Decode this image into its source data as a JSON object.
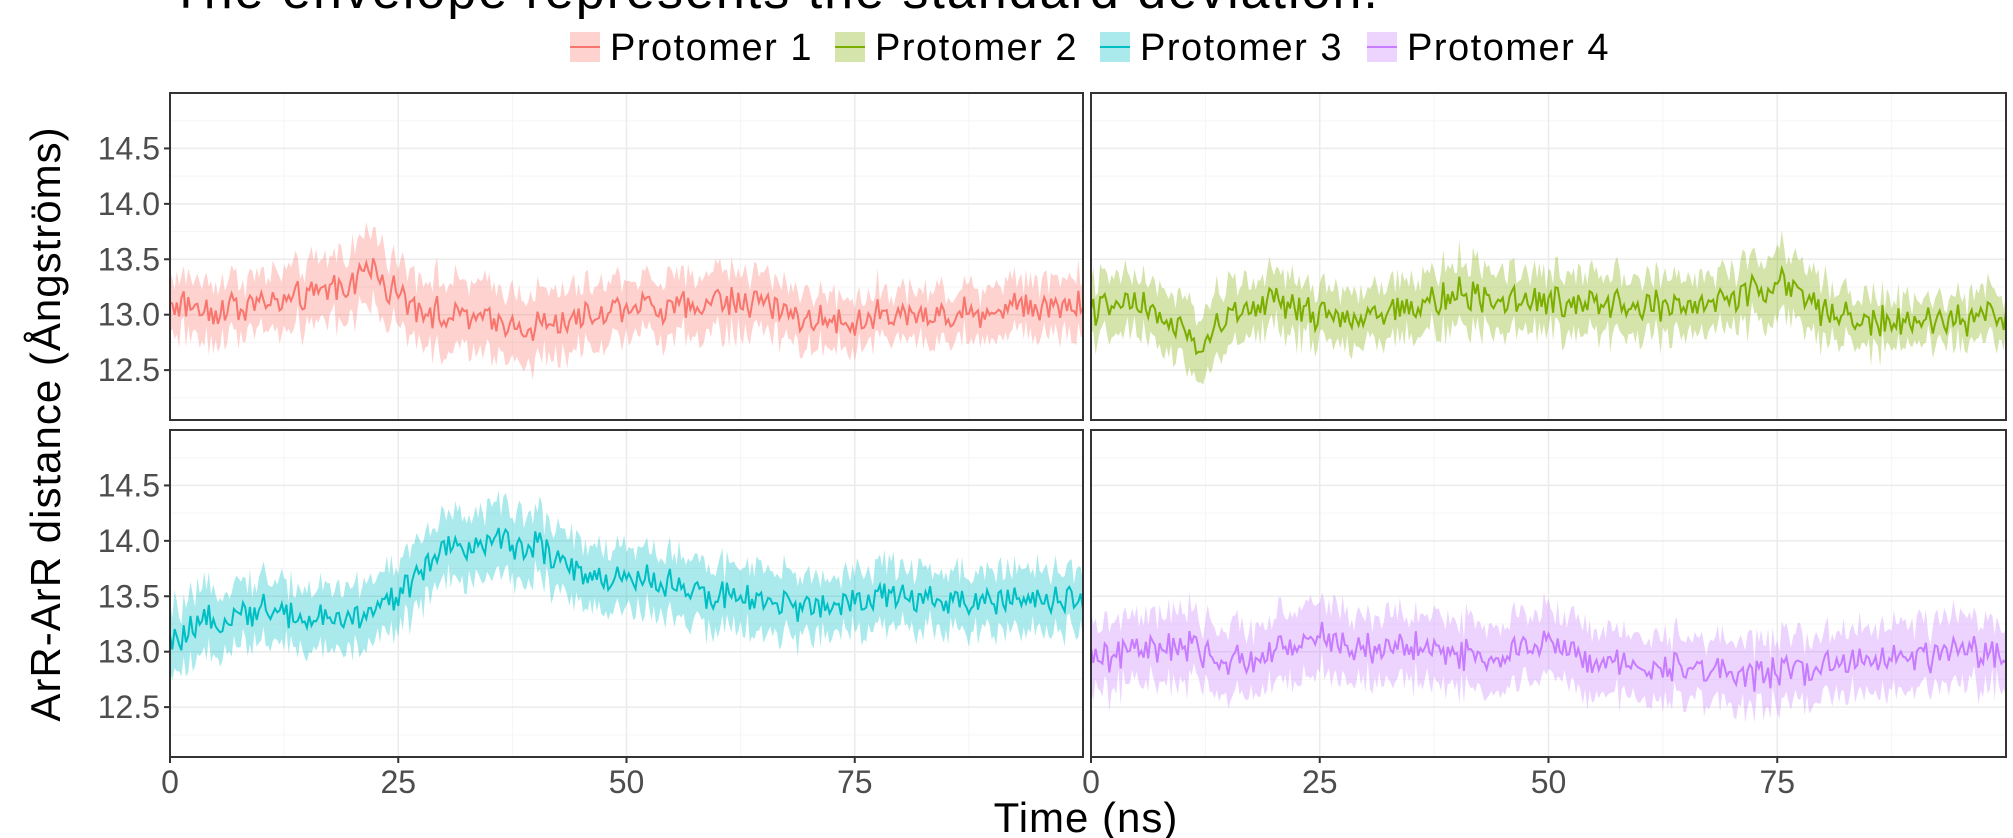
{
  "title": "The envelope represents the standard deviation.",
  "colors": {
    "Protomer 1": "#F8766D",
    "Protomer 2": "#7CAE00",
    "Protomer 3": "#00BFC4",
    "Protomer 4": "#C77CFF",
    "grid_major": "#ebebeb",
    "grid_minor": "#f5f5f5",
    "panel_border": "#333333"
  },
  "chart_data": {
    "type": "line",
    "title": "The envelope represents the standard deviation.",
    "xlabel": "Time (ns)",
    "ylabel": "ArR-ArR distance (Ångströms)",
    "xlim": [
      0,
      100
    ],
    "ylim": [
      12.05,
      15.0
    ],
    "x_ticks": [
      0,
      25,
      50,
      75
    ],
    "x_tick_labels": [
      "0",
      "25",
      "50",
      "75"
    ],
    "y_ticks": [
      12.5,
      13.0,
      13.5,
      14.0,
      14.5
    ],
    "y_tick_labels": [
      "12.5",
      "13.0",
      "13.5",
      "14.0",
      "14.5"
    ],
    "grid": true,
    "facets": "2x2",
    "legend": {
      "position": "top",
      "entries": [
        "Protomer 1",
        "Protomer 2",
        "Protomer 3",
        "Protomer 4"
      ]
    },
    "series": [
      {
        "name": "Protomer 1",
        "x": [
          0,
          5,
          10,
          15,
          20,
          22,
          25,
          30,
          35,
          40,
          45,
          50,
          55,
          60,
          65,
          70,
          75,
          80,
          85,
          90,
          95,
          100
        ],
        "values": [
          13.1,
          13.05,
          13.1,
          13.15,
          13.3,
          13.45,
          13.15,
          13.0,
          12.95,
          12.9,
          12.95,
          13.1,
          13.05,
          13.15,
          13.1,
          12.95,
          12.95,
          13.0,
          13.0,
          13.05,
          13.1,
          13.1
        ],
        "sd": [
          0.25,
          0.25,
          0.25,
          0.28,
          0.3,
          0.32,
          0.3,
          0.3,
          0.3,
          0.3,
          0.28,
          0.25,
          0.25,
          0.28,
          0.26,
          0.24,
          0.22,
          0.22,
          0.22,
          0.24,
          0.25,
          0.25
        ]
      },
      {
        "name": "Protomer 2",
        "x": [
          0,
          5,
          10,
          12,
          15,
          20,
          25,
          30,
          35,
          40,
          45,
          50,
          55,
          60,
          65,
          70,
          75,
          80,
          85,
          90,
          95,
          100
        ],
        "values": [
          13.05,
          13.1,
          12.85,
          12.7,
          13.0,
          13.1,
          13.0,
          12.95,
          13.05,
          13.2,
          13.15,
          13.1,
          13.15,
          13.1,
          13.05,
          13.15,
          13.3,
          13.05,
          12.95,
          12.9,
          12.95,
          13.0
        ],
        "sd": [
          0.25,
          0.25,
          0.28,
          0.3,
          0.28,
          0.25,
          0.25,
          0.25,
          0.25,
          0.28,
          0.27,
          0.25,
          0.27,
          0.26,
          0.25,
          0.26,
          0.3,
          0.25,
          0.22,
          0.2,
          0.2,
          0.22
        ]
      },
      {
        "name": "Protomer 3",
        "x": [
          0,
          5,
          10,
          15,
          20,
          25,
          28,
          30,
          35,
          40,
          45,
          50,
          55,
          60,
          65,
          70,
          75,
          80,
          85,
          90,
          95,
          100
        ],
        "values": [
          13.05,
          13.3,
          13.4,
          13.3,
          13.3,
          13.5,
          13.75,
          13.9,
          14.0,
          13.95,
          13.7,
          13.65,
          13.6,
          13.5,
          13.45,
          13.4,
          13.45,
          13.5,
          13.45,
          13.45,
          13.45,
          13.5
        ],
        "sd": [
          0.3,
          0.28,
          0.28,
          0.28,
          0.28,
          0.3,
          0.3,
          0.3,
          0.3,
          0.3,
          0.3,
          0.28,
          0.28,
          0.28,
          0.28,
          0.27,
          0.27,
          0.27,
          0.27,
          0.27,
          0.27,
          0.27
        ]
      },
      {
        "name": "Protomer 4",
        "x": [
          0,
          5,
          10,
          15,
          20,
          25,
          30,
          35,
          40,
          45,
          50,
          55,
          60,
          65,
          70,
          75,
          80,
          85,
          90,
          95,
          100
        ],
        "values": [
          12.95,
          13.0,
          13.05,
          12.9,
          13.0,
          13.15,
          13.0,
          13.05,
          13.0,
          12.95,
          13.1,
          12.9,
          12.85,
          12.85,
          12.8,
          12.8,
          12.85,
          12.95,
          12.95,
          13.0,
          12.95
        ],
        "sd": [
          0.3,
          0.3,
          0.3,
          0.3,
          0.3,
          0.32,
          0.3,
          0.3,
          0.3,
          0.3,
          0.3,
          0.28,
          0.28,
          0.28,
          0.28,
          0.3,
          0.28,
          0.3,
          0.3,
          0.3,
          0.28
        ]
      }
    ]
  }
}
